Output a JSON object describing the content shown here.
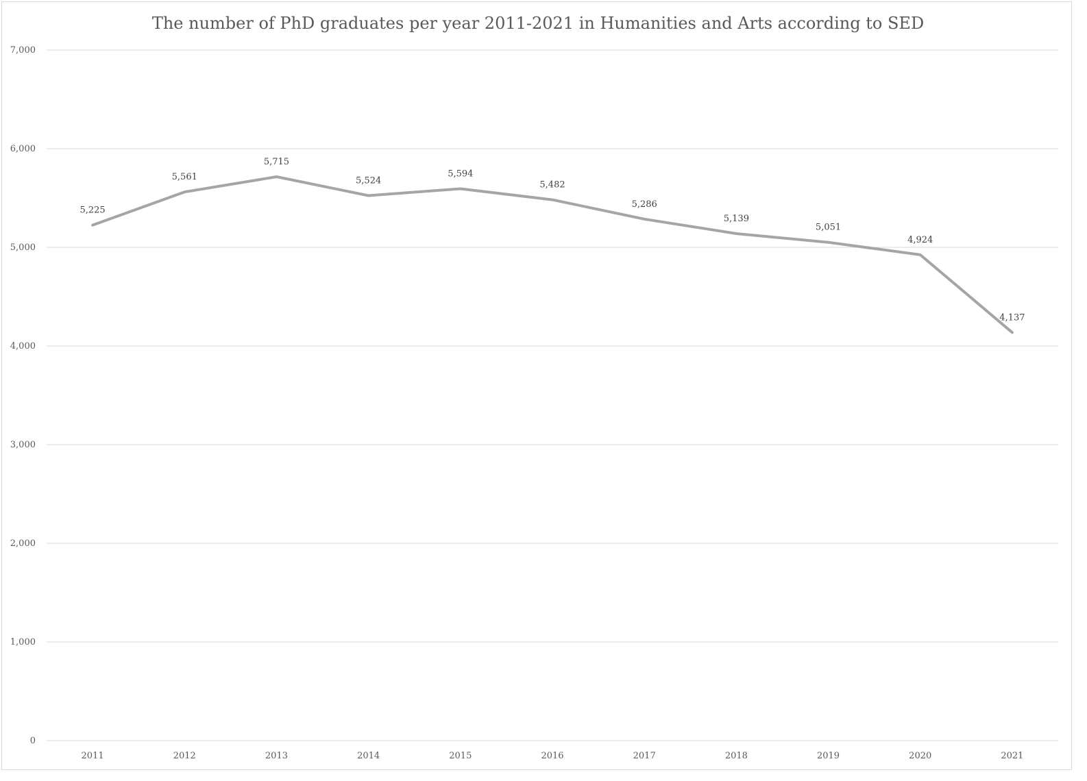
{
  "chart_data": {
    "type": "line",
    "title": "The number of PhD graduates per year 2011-2021 in Humanities and Arts according to SED",
    "categories": [
      "2011",
      "2012",
      "2013",
      "2014",
      "2015",
      "2016",
      "2017",
      "2018",
      "2019",
      "2020",
      "2021"
    ],
    "series": [
      {
        "values": [
          5225,
          5561,
          5715,
          5524,
          5594,
          5482,
          5286,
          5139,
          5051,
          4924,
          4137
        ],
        "data_labels": [
          "5,225",
          "5,561",
          "5,715",
          "5,524",
          "5,594",
          "5,482",
          "5,286",
          "5,139",
          "5,051",
          "4,924",
          "4,137"
        ],
        "color": "#a5a5a5"
      }
    ],
    "xlabel": "",
    "ylabel": "",
    "ylim": [
      0,
      7000
    ],
    "yticks": [
      0,
      1000,
      2000,
      3000,
      4000,
      5000,
      6000,
      7000
    ],
    "ytick_labels": [
      "0",
      "1,000",
      "2,000",
      "3,000",
      "4,000",
      "5,000",
      "6,000",
      "7,000"
    ],
    "grid": true,
    "legend": "none",
    "colors": {
      "line": "#a5a5a5",
      "grid": "#d9d9d9",
      "text": "#595959"
    }
  }
}
